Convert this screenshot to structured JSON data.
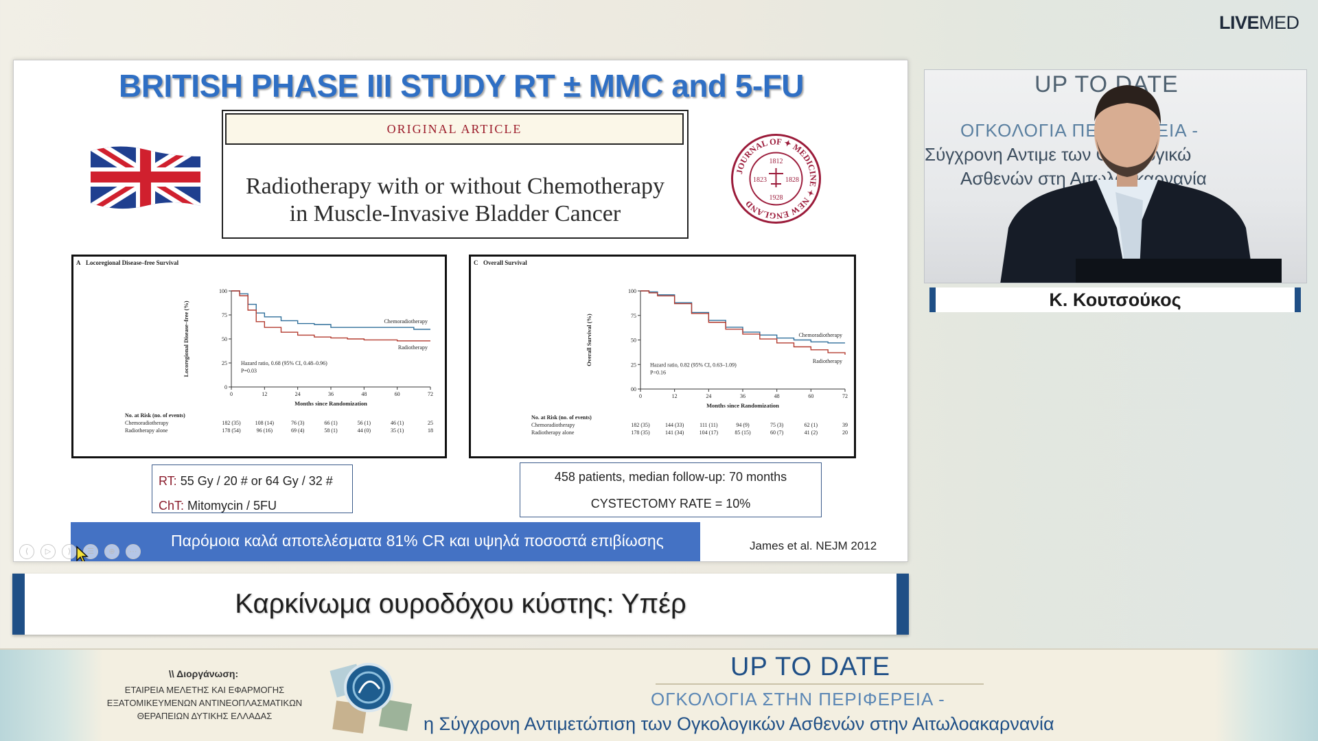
{
  "brand": {
    "bold": "LIVE",
    "rest": "MED"
  },
  "slide": {
    "title": "BRITISH PHASE III STUDY RT ± MMC and 5-FU",
    "article": {
      "tag": "ORIGINAL ARTICLE",
      "title_line1": "Radiotherapy with or without Chemotherapy",
      "title_line2": "in Muscle-Invasive Bladder Cancer"
    },
    "seal": {
      "top": "MEDICINE",
      "right": "NEW ENGLAND",
      "bottom": "JOURNAL OF",
      "year1": "1812",
      "year2": "1823",
      "year3": "1828",
      "year4": "1928"
    },
    "rt_note": {
      "rt_label": "RT:",
      "rt_value": " 55 Gy / 20 # or 64 Gy / 32 #",
      "cht_label": "ChT:",
      "cht_value": " Mitomycin / 5FU"
    },
    "patients_note": {
      "line1": "458 patients, median follow-up: 70 months",
      "line2": "CYSTECTOMY RATE = 10%"
    },
    "conclusion": "Παρόμοια καλά αποτελέσματα 81% CR και υψηλά ποσοστά επιβίωσης",
    "citation": "James et al. NEJM 2012",
    "player_controls": [
      "⟨",
      "▷",
      "⟩",
      "☰",
      "⊕",
      "⋯"
    ]
  },
  "chart_data": [
    {
      "type": "line",
      "title": "Locoregional Disease–free Survival",
      "panel": "A",
      "xlabel": "Months since Randomization",
      "ylabel": "Locoregional Disease–free (%)",
      "xlim": [
        0,
        72
      ],
      "ylim": [
        0,
        100
      ],
      "xticks": [
        0,
        12,
        24,
        36,
        48,
        60,
        72
      ],
      "yticks": [
        0,
        25,
        50,
        75,
        100
      ],
      "series": [
        {
          "name": "Chemoradiotherapy",
          "color": "#2e6e9a",
          "x": [
            0,
            3,
            6,
            9,
            12,
            18,
            24,
            30,
            36,
            42,
            48,
            54,
            60,
            66,
            72
          ],
          "y": [
            100,
            97,
            86,
            77,
            73,
            69,
            66,
            65,
            62,
            62,
            62,
            62,
            62,
            60,
            60
          ]
        },
        {
          "name": "Radiotherapy",
          "color": "#b33a2e",
          "x": [
            0,
            3,
            6,
            9,
            12,
            18,
            24,
            30,
            36,
            42,
            48,
            54,
            60,
            66,
            72
          ],
          "y": [
            100,
            95,
            80,
            68,
            62,
            57,
            54,
            52,
            51,
            50,
            49,
            49,
            48,
            48,
            48
          ]
        }
      ],
      "annotation_line1": "Hazard ratio, 0.68 (95% CI, 0.48–0.96)",
      "annotation_line2": "P=0.03",
      "risk_table": {
        "header": "No. at Risk (no. of events)",
        "rows": [
          {
            "label": "Chemoradiotherapy",
            "values": [
              "182 (35)",
              "108 (14)",
              "76 (3)",
              "66 (1)",
              "56 (1)",
              "46 (1)",
              "25"
            ]
          },
          {
            "label": "Radiotherapy alone",
            "values": [
              "178 (54)",
              "96 (16)",
              "69 (4)",
              "58 (1)",
              "44 (0)",
              "35 (1)",
              "18"
            ]
          }
        ]
      }
    },
    {
      "type": "line",
      "title": "Overall Survival",
      "panel": "C",
      "xlabel": "Months since Randomization",
      "ylabel": "Overall Survival (%)",
      "xlim": [
        0,
        72
      ],
      "ylim": [
        0,
        100
      ],
      "xticks": [
        0,
        12,
        24,
        36,
        48,
        60,
        72
      ],
      "yticks": [
        "00",
        25,
        50,
        75,
        100
      ],
      "series": [
        {
          "name": "Chemoradiotherapy",
          "color": "#2e6e9a",
          "x": [
            0,
            3,
            6,
            12,
            18,
            24,
            30,
            36,
            42,
            48,
            54,
            60,
            66,
            72
          ],
          "y": [
            100,
            99,
            96,
            88,
            78,
            70,
            63,
            58,
            55,
            52,
            50,
            48,
            47,
            47
          ]
        },
        {
          "name": "Radiotherapy",
          "color": "#b33a2e",
          "x": [
            0,
            3,
            6,
            12,
            18,
            24,
            30,
            36,
            42,
            48,
            54,
            60,
            66,
            72
          ],
          "y": [
            100,
            98,
            95,
            87,
            77,
            68,
            61,
            56,
            51,
            47,
            43,
            40,
            37,
            35
          ]
        }
      ],
      "annotation_line1": "Hazard ratio, 0.82 (95% CI, 0.63–1.09)",
      "annotation_line2": "P=0.16",
      "risk_table": {
        "header": "No. at Risk (no. of events)",
        "rows": [
          {
            "label": "Chemoradiotherapy",
            "values": [
              "182 (35)",
              "144 (33)",
              "111 (11)",
              "94 (9)",
              "75 (3)",
              "62 (1)",
              "39"
            ]
          },
          {
            "label": "Radiotherapy alone",
            "values": [
              "178 (35)",
              "141 (34)",
              "104 (17)",
              "85 (15)",
              "60 (7)",
              "41 (2)",
              "20"
            ]
          }
        ]
      }
    }
  ],
  "lower_third": "Καρκίνωμα ουροδόχου κύστης: Υπέρ",
  "video": {
    "backdrop_title": "UP TO DATE",
    "backdrop_line2": "ΟΓΚΟΛΟΓΙΑ                ΠΕΡΙΦΕΡΕΙΑ -",
    "backdrop_line3": "Σύγχρονη Αντιμε           των Ογκολογικώ",
    "backdrop_line4": "Ασθενών στη              Αιτωλοακαρνανία"
  },
  "speaker_name": "Κ. Κουτσούκος",
  "footer": {
    "org_label": "\\\\ Διοργάνωση:",
    "org_line1": "ΕΤΑΙΡΕΙΑ ΜΕΛΕΤΗΣ ΚΑΙ ΕΦΑΡΜΟΓΗΣ",
    "org_line2": "ΕΞΑΤΟΜΙΚΕΥΜΕΝΩΝ ΑΝΤΙΝΕΟΠΛΑΣΜΑΤΙΚΩΝ",
    "org_line3": "ΘΕΡΑΠΕΙΩΝ ΔΥΤΙΚΗΣ ΕΛΛΑΔΑΣ",
    "title": "UP TO DATE",
    "line2": "ΟΓΚΟΛΟΓΙΑ ΣΤΗΝ ΠΕΡΙΦΕΡΕΙΑ -",
    "line3": "η Σύγχρονη Αντιμετώπιση των Ογκολογικών Ασθενών στην Αιτωλοακαρνανία"
  }
}
